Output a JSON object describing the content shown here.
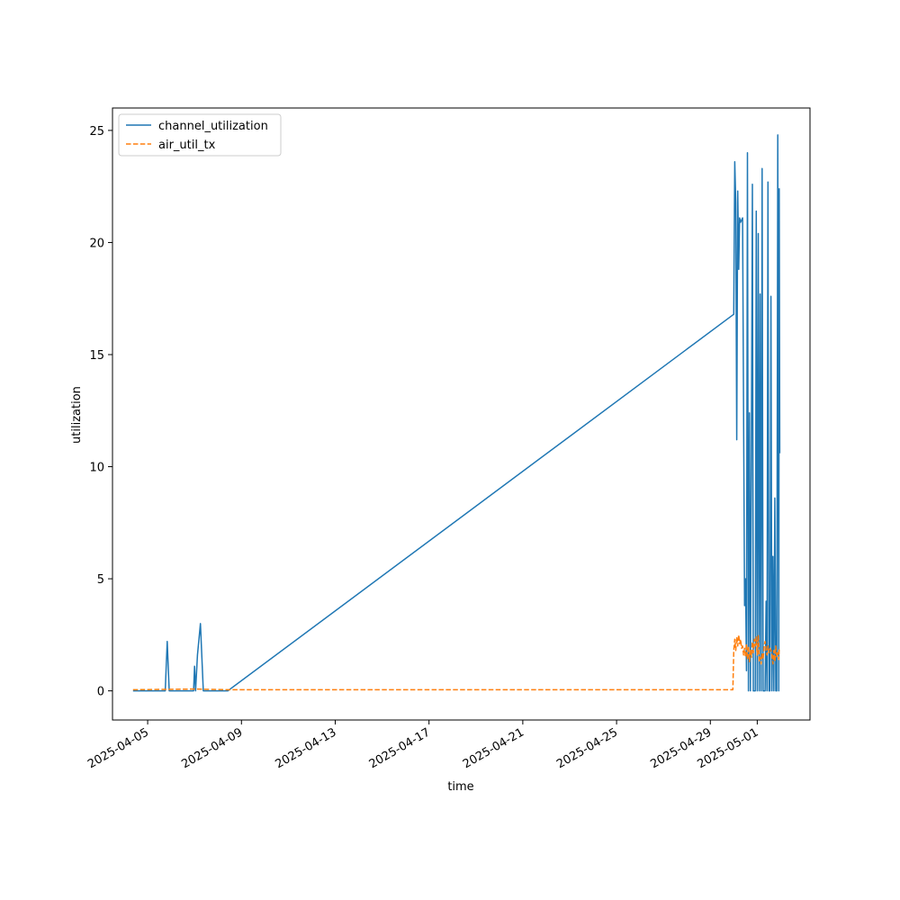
{
  "chart_data": {
    "type": "line",
    "title": "",
    "xlabel": "time",
    "ylabel": "utilization",
    "xlim": [
      "2025-04-03 12:00",
      "2025-05-03 06:00"
    ],
    "ylim": [
      -1.3,
      26.0
    ],
    "grid": false,
    "legend_position": "upper left",
    "x_ticks": [
      "2025-04-05",
      "2025-04-09",
      "2025-04-13",
      "2025-04-17",
      "2025-04-21",
      "2025-04-25",
      "2025-04-29",
      "2025-05-01"
    ],
    "y_ticks": [
      0,
      5,
      10,
      15,
      20,
      25
    ],
    "series": [
      {
        "name": "channel_utilization",
        "color": "#1f77b4",
        "style": "solid",
        "points": [
          [
            "2025-04-04 09:00",
            0.0
          ],
          [
            "2025-04-05 18:00",
            0.0
          ],
          [
            "2025-04-05 20:00",
            2.2
          ],
          [
            "2025-04-05 22:00",
            0.0
          ],
          [
            "2025-04-06 23:00",
            0.0
          ],
          [
            "2025-04-07 00:00",
            1.1
          ],
          [
            "2025-04-07 01:00",
            0.0
          ],
          [
            "2025-04-07 03:00",
            1.6
          ],
          [
            "2025-04-07 06:00",
            3.0
          ],
          [
            "2025-04-07 09:00",
            0.0
          ],
          [
            "2025-04-08 10:00",
            0.0
          ],
          [
            "2025-04-30 00:00",
            16.8
          ],
          [
            "2025-04-30 01:00",
            23.6
          ],
          [
            "2025-04-30 02:00",
            21.8
          ],
          [
            "2025-04-30 03:00",
            11.2
          ],
          [
            "2025-04-30 04:00",
            22.3
          ],
          [
            "2025-04-30 05:00",
            18.8
          ],
          [
            "2025-04-30 06:00",
            21.1
          ],
          [
            "2025-04-30 07:00",
            20.9
          ],
          [
            "2025-04-30 08:00",
            21.0
          ],
          [
            "2025-04-30 09:00",
            21.1
          ],
          [
            "2025-04-30 11:00",
            3.8
          ],
          [
            "2025-04-30 12:00",
            5.0
          ],
          [
            "2025-04-30 13:00",
            0.9
          ],
          [
            "2025-04-30 14:00",
            24.0
          ],
          [
            "2025-04-30 15:00",
            0.0
          ],
          [
            "2025-04-30 16:00",
            12.4
          ],
          [
            "2025-04-30 17:00",
            0.0
          ],
          [
            "2025-04-30 19:00",
            22.6
          ],
          [
            "2025-04-30 20:00",
            0.0
          ],
          [
            "2025-04-30 22:00",
            0.0
          ],
          [
            "2025-04-30 23:00",
            21.4
          ],
          [
            "2025-05-01 00:00",
            0.0
          ],
          [
            "2025-05-01 01:00",
            20.4
          ],
          [
            "2025-05-01 02:00",
            0.0
          ],
          [
            "2025-05-01 03:00",
            17.7
          ],
          [
            "2025-05-01 04:00",
            0.0
          ],
          [
            "2025-05-01 05:00",
            23.3
          ],
          [
            "2025-05-01 06:00",
            0.0
          ],
          [
            "2025-05-01 07:00",
            0.0
          ],
          [
            "2025-05-01 08:00",
            0.0
          ],
          [
            "2025-05-01 09:00",
            4.0
          ],
          [
            "2025-05-01 10:00",
            0.0
          ],
          [
            "2025-05-01 11:00",
            22.7
          ],
          [
            "2025-05-01 12:00",
            0.0
          ],
          [
            "2025-05-01 13:00",
            0.0
          ],
          [
            "2025-05-01 14:00",
            17.6
          ],
          [
            "2025-05-01 15:00",
            0.0
          ],
          [
            "2025-05-01 16:00",
            6.0
          ],
          [
            "2025-05-01 17:00",
            0.0
          ],
          [
            "2025-05-01 18:00",
            8.6
          ],
          [
            "2025-05-01 19:00",
            0.0
          ],
          [
            "2025-05-01 20:00",
            0.0
          ],
          [
            "2025-05-01 21:00",
            24.8
          ],
          [
            "2025-05-01 22:00",
            0.0
          ],
          [
            "2025-05-01 22:30",
            22.4
          ],
          [
            "2025-05-01 23:00",
            10.6
          ]
        ]
      },
      {
        "name": "air_util_tx",
        "color": "#ff7f0e",
        "style": "dashed",
        "points": [
          [
            "2025-04-04 09:00",
            0.05
          ],
          [
            "2025-04-07 00:00",
            0.08
          ],
          [
            "2025-04-08 10:00",
            0.05
          ],
          [
            "2025-04-29 23:00",
            0.05
          ],
          [
            "2025-04-30 00:00",
            1.8
          ],
          [
            "2025-04-30 01:00",
            2.3
          ],
          [
            "2025-04-30 02:00",
            1.8
          ],
          [
            "2025-04-30 03:00",
            2.4
          ],
          [
            "2025-04-30 04:00",
            2.0
          ],
          [
            "2025-04-30 05:00",
            2.5
          ],
          [
            "2025-04-30 06:00",
            2.1
          ],
          [
            "2025-04-30 07:00",
            2.3
          ],
          [
            "2025-04-30 08:00",
            1.9
          ],
          [
            "2025-04-30 09:00",
            2.0
          ],
          [
            "2025-04-30 10:00",
            1.6
          ],
          [
            "2025-04-30 11:00",
            1.9
          ],
          [
            "2025-04-30 12:00",
            1.5
          ],
          [
            "2025-04-30 13:00",
            2.1
          ],
          [
            "2025-04-30 14:00",
            1.4
          ],
          [
            "2025-04-30 15:00",
            2.0
          ],
          [
            "2025-04-30 16:00",
            1.3
          ],
          [
            "2025-04-30 17:00",
            1.8
          ],
          [
            "2025-04-30 18:00",
            1.5
          ],
          [
            "2025-04-30 19:00",
            2.2
          ],
          [
            "2025-04-30 20:00",
            1.7
          ],
          [
            "2025-04-30 21:00",
            2.3
          ],
          [
            "2025-04-30 22:00",
            2.0
          ],
          [
            "2025-04-30 23:00",
            2.4
          ],
          [
            "2025-05-01 00:00",
            1.6
          ],
          [
            "2025-05-01 01:00",
            2.5
          ],
          [
            "2025-05-01 02:00",
            1.3
          ],
          [
            "2025-05-01 03:00",
            1.5
          ],
          [
            "2025-05-01 04:00",
            1.2
          ],
          [
            "2025-05-01 05:00",
            1.7
          ],
          [
            "2025-05-01 06:00",
            1.4
          ],
          [
            "2025-05-01 07:00",
            2.0
          ],
          [
            "2025-05-01 08:00",
            2.2
          ],
          [
            "2025-05-01 09:00",
            1.8
          ],
          [
            "2025-05-01 10:00",
            1.6
          ],
          [
            "2025-05-01 11:00",
            2.0
          ],
          [
            "2025-05-01 12:00",
            1.7
          ],
          [
            "2025-05-01 13:00",
            1.9
          ],
          [
            "2025-05-01 14:00",
            1.8
          ],
          [
            "2025-05-01 15:00",
            1.6
          ],
          [
            "2025-05-01 16:00",
            1.2
          ],
          [
            "2025-05-01 17:00",
            1.8
          ],
          [
            "2025-05-01 18:00",
            1.3
          ],
          [
            "2025-05-01 19:00",
            2.0
          ],
          [
            "2025-05-01 20:00",
            1.5
          ],
          [
            "2025-05-01 21:00",
            1.7
          ],
          [
            "2025-05-01 22:00",
            1.4
          ],
          [
            "2025-05-01 22:30",
            1.9
          ],
          [
            "2025-05-01 23:00",
            1.9
          ]
        ]
      }
    ]
  }
}
